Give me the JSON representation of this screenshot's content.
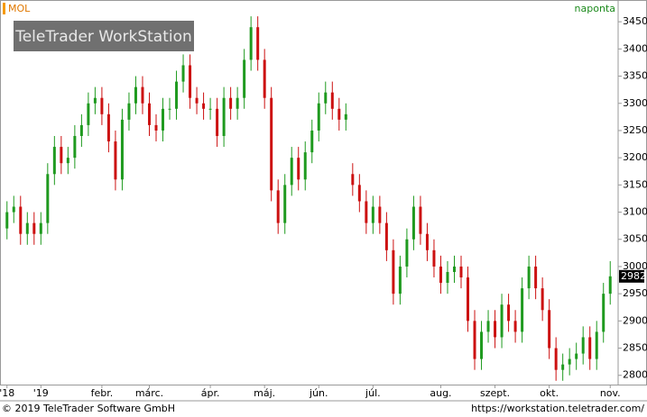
{
  "chart_data": {
    "type": "candlestick",
    "title": "MOL",
    "subtitle": "naponta",
    "watermark": "TeleTrader WorkStation",
    "footer_left": "© 2019 TeleTrader Software GmbH",
    "footer_right": "https://workstation.teletrader.com/",
    "up_color": "#1f9a1f",
    "down_color": "#cc1111",
    "categories": [
      "'18",
      null,
      null,
      null,
      null,
      "'19",
      null,
      null,
      null,
      null,
      null,
      null,
      null,
      null,
      "febr.",
      null,
      null,
      null,
      null,
      null,
      null,
      "márc.",
      null,
      null,
      null,
      null,
      null,
      null,
      null,
      null,
      "ápr.",
      null,
      null,
      null,
      null,
      null,
      null,
      null,
      "máj.",
      null,
      null,
      null,
      null,
      null,
      null,
      null,
      "jún.",
      null,
      null,
      null,
      null,
      null,
      null,
      null,
      "júl.",
      null,
      null,
      null,
      null,
      null,
      null,
      null,
      null,
      null,
      "aug.",
      null,
      null,
      null,
      null,
      null,
      null,
      null,
      "szept.",
      null,
      null,
      null,
      null,
      null,
      null,
      null,
      "okt.",
      null,
      null,
      null,
      null,
      null,
      null,
      null,
      null,
      "nov."
    ],
    "open": [
      3070,
      3100,
      3110,
      3060,
      3080,
      3060,
      3080,
      3170,
      3220,
      3190,
      3200,
      3240,
      3260,
      3300,
      3310,
      3280,
      3230,
      3160,
      3270,
      3300,
      3330,
      3300,
      3260,
      3250,
      3290,
      3290,
      3340,
      3370,
      3310,
      3300,
      3290,
      3290,
      3240,
      3310,
      3290,
      3310,
      3380,
      3440,
      3380,
      3310,
      3140,
      3080,
      3150,
      3200,
      3160,
      3210,
      3250,
      3300,
      3320,
      3290,
      3270,
      3170,
      3150,
      3120,
      3080,
      3110,
      3080,
      3030,
      2950,
      3000,
      3050,
      3110,
      3060,
      3030,
      3000,
      2970,
      2990,
      3000,
      2980,
      2900,
      2830,
      2880,
      2900,
      2870,
      2930,
      2900,
      2880,
      2960,
      3000,
      2960,
      2920,
      2850,
      2810,
      2820,
      2830,
      2840,
      2870,
      2830,
      2880,
      2950
    ],
    "high": [
      3120,
      3130,
      3130,
      3100,
      3100,
      3100,
      3190,
      3240,
      3240,
      3220,
      3260,
      3280,
      3320,
      3330,
      3330,
      3300,
      3250,
      3290,
      3320,
      3350,
      3350,
      3320,
      3280,
      3310,
      3310,
      3360,
      3390,
      3390,
      3330,
      3320,
      3310,
      3310,
      3330,
      3330,
      3330,
      3400,
      3460,
      3460,
      3400,
      3330,
      3160,
      3170,
      3220,
      3220,
      3230,
      3270,
      3320,
      3340,
      3340,
      3310,
      3300,
      3190,
      3170,
      3140,
      3130,
      3130,
      3100,
      3050,
      3020,
      3070,
      3130,
      3130,
      3080,
      3050,
      3020,
      3010,
      3020,
      3020,
      3000,
      2920,
      2900,
      2920,
      2920,
      2950,
      2950,
      2920,
      2980,
      3020,
      3020,
      2980,
      2940,
      2870,
      2840,
      2850,
      2860,
      2890,
      2890,
      2900,
      2970,
      3010
    ],
    "low": [
      3050,
      3080,
      3040,
      3040,
      3040,
      3040,
      3060,
      3150,
      3170,
      3170,
      3180,
      3220,
      3240,
      3280,
      3260,
      3210,
      3140,
      3140,
      3250,
      3280,
      3280,
      3240,
      3230,
      3230,
      3270,
      3270,
      3320,
      3290,
      3280,
      3270,
      3270,
      3220,
      3220,
      3270,
      3270,
      3290,
      3360,
      3360,
      3290,
      3120,
      3060,
      3060,
      3130,
      3140,
      3140,
      3190,
      3230,
      3280,
      3270,
      3250,
      3250,
      3130,
      3100,
      3060,
      3060,
      3060,
      3010,
      2930,
      2930,
      2980,
      3030,
      3040,
      3010,
      2980,
      2950,
      2950,
      2970,
      2960,
      2880,
      2810,
      2810,
      2860,
      2850,
      2850,
      2880,
      2860,
      2860,
      2940,
      2940,
      2900,
      2830,
      2790,
      2790,
      2800,
      2810,
      2820,
      2810,
      2810,
      2860,
      2930
    ],
    "close": [
      3100,
      3110,
      3060,
      3080,
      3060,
      3080,
      3170,
      3220,
      3190,
      3200,
      3240,
      3260,
      3300,
      3310,
      3280,
      3230,
      3160,
      3270,
      3300,
      3330,
      3300,
      3260,
      3250,
      3290,
      3290,
      3340,
      3370,
      3310,
      3300,
      3290,
      3290,
      3240,
      3310,
      3290,
      3310,
      3380,
      3440,
      3380,
      3310,
      3140,
      3080,
      3150,
      3200,
      3160,
      3210,
      3250,
      3300,
      3320,
      3290,
      3270,
      3280,
      3150,
      3120,
      3080,
      3110,
      3080,
      3030,
      2950,
      3000,
      3050,
      3110,
      3060,
      3030,
      3000,
      2970,
      2990,
      3000,
      2980,
      2900,
      2830,
      2880,
      2900,
      2870,
      2930,
      2900,
      2880,
      2960,
      3000,
      2960,
      2920,
      2850,
      2810,
      2820,
      2830,
      2840,
      2870,
      2830,
      2880,
      2950,
      2982
    ],
    "ylim": [
      2783,
      3490
    ],
    "yticks": [
      2800,
      2850,
      2900,
      2950,
      3000,
      3050,
      3100,
      3150,
      3200,
      3250,
      3300,
      3350,
      3400,
      3450
    ]
  }
}
